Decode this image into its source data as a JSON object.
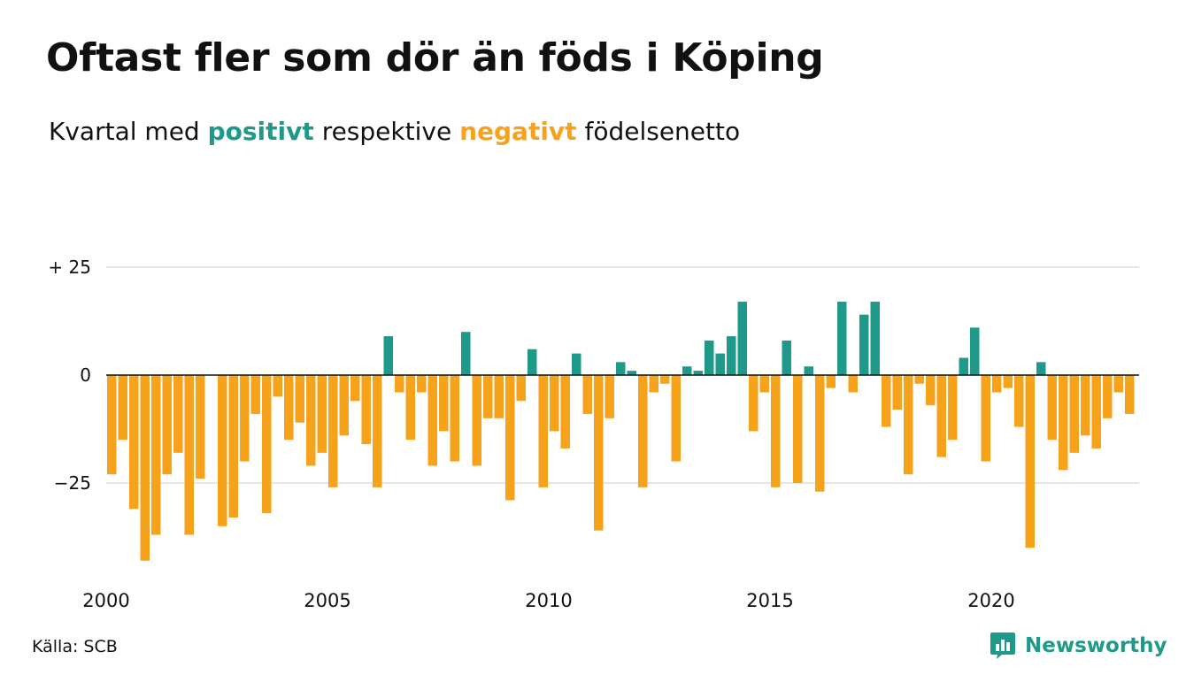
{
  "header": {
    "title": "Oftast fler som dör än föds i Köping",
    "subtitle_before": "Kvartal med",
    "subtitle_positive": "positivt",
    "subtitle_middle": "respektive",
    "subtitle_negative": "negativt",
    "subtitle_after": "födelsenetto"
  },
  "footer": {
    "source": "Källa: SCB",
    "brand": "Newsworthy"
  },
  "colors": {
    "positive": "#1f9a8a",
    "negative": "#f7a21b",
    "brand": "#1f9a8a",
    "grid": "#dddddd",
    "zero_line": "#111111"
  },
  "chart_data": {
    "type": "bar",
    "title": "Oftast fler som dör än föds i Köping",
    "subtitle": "Kvartal med positivt respektive negativt födelsenetto",
    "x_start_year": 2000,
    "periods_per_year": 4,
    "xticks": [
      2000,
      2005,
      2010,
      2015,
      2020
    ],
    "yticks": [
      {
        "value": 25,
        "label": "+ 25"
      },
      {
        "value": 0,
        "label": "0"
      },
      {
        "value": -25,
        "label": "−25"
      }
    ],
    "ylim": [
      -45,
      28
    ],
    "grid": true,
    "values": [
      -23,
      -15,
      -31,
      -43,
      -37,
      -23,
      -18,
      -37,
      -24,
      0,
      -35,
      -33,
      -20,
      -9,
      -32,
      -5,
      -15,
      -11,
      -21,
      -18,
      -26,
      -14,
      -6,
      -16,
      -26,
      9,
      -4,
      -15,
      -4,
      -21,
      -13,
      -20,
      10,
      -21,
      -10,
      -10,
      -29,
      -6,
      6,
      -26,
      -13,
      -17,
      5,
      -9,
      -36,
      -10,
      3,
      1,
      -26,
      -4,
      -2,
      -20,
      2,
      1,
      8,
      5,
      9,
      17,
      -13,
      -4,
      -26,
      8,
      -25,
      2,
      -27,
      -3,
      17,
      -4,
      14,
      17,
      -12,
      -8,
      -23,
      -2,
      -7,
      -19,
      -15,
      4,
      11,
      -20,
      -4,
      -3,
      -12,
      -40,
      3,
      -15,
      -22,
      -18,
      -14,
      -17,
      -10,
      -4,
      -9
    ]
  }
}
